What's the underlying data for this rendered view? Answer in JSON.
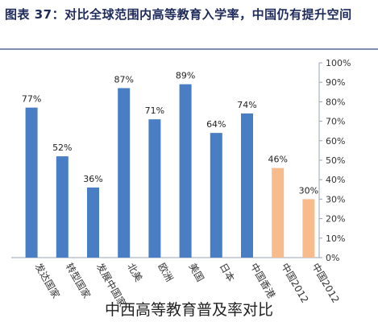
{
  "header": {
    "title": "图表 37：对比全球范围内高等教育入学率，中国仍有提升空间"
  },
  "caption": "中西高等教育普及率对比",
  "chart_data": {
    "type": "bar",
    "title": "图表 37：对比全球范围内高等教育入学率，中国仍有提升空间",
    "xlabel": "",
    "ylabel": "",
    "ylim": [
      0,
      100
    ],
    "y_ticks": [
      "0%",
      "10%",
      "20%",
      "30%",
      "40%",
      "50%",
      "60%",
      "70%",
      "80%",
      "90%",
      "100%"
    ],
    "y_axis_position": "right",
    "grid": false,
    "categories": [
      "发达国家",
      "转型国家",
      "发展中国家",
      "北美",
      "欧洲",
      "美国",
      "日本",
      "中国香港",
      "中国2012",
      "中国2012"
    ],
    "values": [
      77,
      52,
      36,
      87,
      71,
      89,
      64,
      74,
      46,
      30
    ],
    "data_labels": [
      "77%",
      "52%",
      "36%",
      "87%",
      "71%",
      "89%",
      "64%",
      "74%",
      "46%",
      "30%"
    ],
    "colors": [
      "#4a7ec4",
      "#4a7ec4",
      "#4a7ec4",
      "#4a7ec4",
      "#4a7ec4",
      "#4a7ec4",
      "#4a7ec4",
      "#4a7ec4",
      "#f7bb8c",
      "#f7bb8c"
    ]
  }
}
